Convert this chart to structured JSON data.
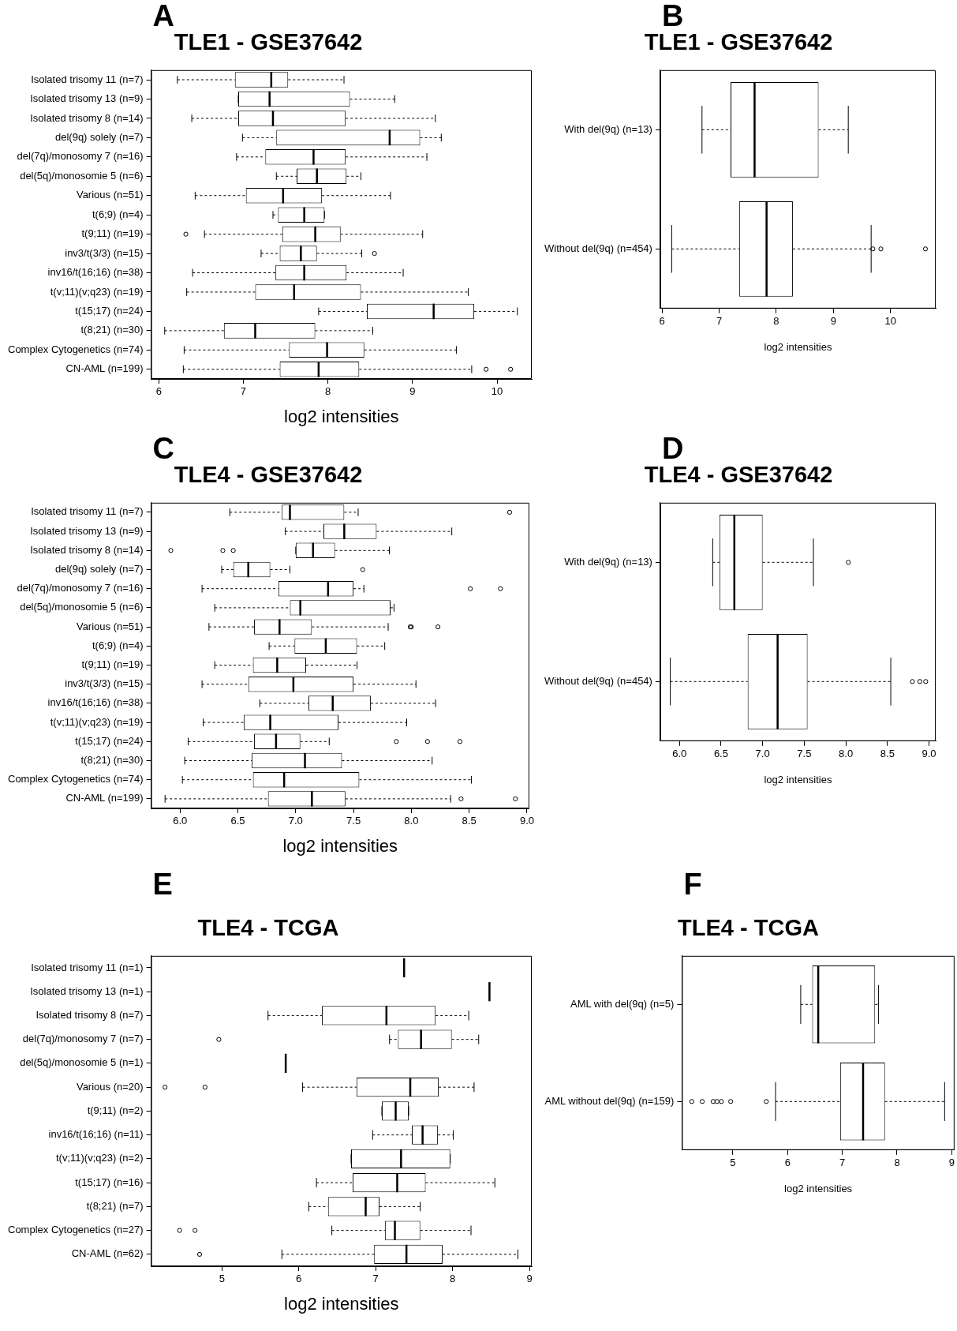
{
  "chart_data": [
    {
      "type": "box",
      "orientation": "horizontal",
      "title": "TLE1 - GSE37642",
      "xlabel": "log2 intensities",
      "annotations": [
        "A"
      ],
      "grid": false,
      "xlim": [
        5.91,
        10.41
      ],
      "xticks": [
        6,
        7,
        8,
        9,
        10
      ],
      "categories": [
        "Isolated trisomy 11 (n=7)",
        "Isolated trisomy 13 (n=9)",
        "Isolated trisomy 8 (n=14)",
        "del(9q) solely (n=7)",
        "del(7q)/monosomy 7 (n=16)",
        "del(5q)/monosomie 5 (n=6)",
        "Various (n=51)",
        "t(6;9) (n=4)",
        "t(9;11) (n=19)",
        "inv3/t(3/3) (n=15)",
        "inv16/t(16;16) (n=38)",
        "t(v;11)(v;q23) (n=19)",
        "t(15;17) (n=24)",
        "t(8;21) (n=30)",
        "Complex Cytogenetics (n=74)",
        "CN-AML (n=199)"
      ],
      "boxes": [
        {
          "low": 6.22,
          "q1": 6.9,
          "median": 7.33,
          "q3": 7.53,
          "high": 8.19
        },
        {
          "low": 6.94,
          "q1": 6.94,
          "median": 7.31,
          "q3": 8.26,
          "high": 8.79
        },
        {
          "low": 6.39,
          "q1": 6.94,
          "median": 7.35,
          "q3": 8.21,
          "high": 9.27
        },
        {
          "low": 6.99,
          "q1": 7.39,
          "median": 8.73,
          "q3": 9.09,
          "high": 9.34
        },
        {
          "low": 6.92,
          "q1": 7.26,
          "median": 7.83,
          "q3": 8.21,
          "high": 9.17
        },
        {
          "low": 7.39,
          "q1": 7.63,
          "median": 7.87,
          "q3": 8.22,
          "high": 8.39
        },
        {
          "low": 6.43,
          "q1": 7.03,
          "median": 7.47,
          "q3": 7.93,
          "high": 8.74
        },
        {
          "low": 7.35,
          "q1": 7.41,
          "median": 7.72,
          "q3": 7.96,
          "high": 7.96
        },
        {
          "low": 6.54,
          "q1": 7.46,
          "median": 7.85,
          "q3": 8.15,
          "high": 9.12,
          "outliers": [
            6.32
          ]
        },
        {
          "low": 7.21,
          "q1": 7.43,
          "median": 7.68,
          "q3": 7.87,
          "high": 8.4,
          "outliers": [
            8.55
          ]
        },
        {
          "low": 6.4,
          "q1": 7.38,
          "median": 7.72,
          "q3": 8.22,
          "high": 8.89
        },
        {
          "low": 6.33,
          "q1": 7.14,
          "median": 7.6,
          "q3": 8.39,
          "high": 9.66
        },
        {
          "low": 7.89,
          "q1": 8.46,
          "median": 9.25,
          "q3": 9.73,
          "high": 10.24
        },
        {
          "low": 6.07,
          "q1": 6.77,
          "median": 7.14,
          "q3": 7.85,
          "high": 8.53
        },
        {
          "low": 6.3,
          "q1": 7.54,
          "median": 7.99,
          "q3": 8.43,
          "high": 9.52
        },
        {
          "low": 6.29,
          "q1": 7.43,
          "median": 7.89,
          "q3": 8.37,
          "high": 9.7,
          "outliers": [
            9.87,
            10.16
          ]
        }
      ]
    },
    {
      "type": "box",
      "orientation": "horizontal",
      "title": "TLE1 - GSE37642",
      "xlabel": "log2 intensities",
      "annotations": [
        "B"
      ],
      "grid": false,
      "xlim": [
        5.97,
        10.79
      ],
      "xticks": [
        6,
        7,
        8,
        9,
        10
      ],
      "categories": [
        "With del(9q) (n=13)",
        "Without del(9q) (n=454)"
      ],
      "boxes": [
        {
          "low": 6.7,
          "q1": 7.2,
          "median": 7.62,
          "q3": 8.74,
          "high": 9.26
        },
        {
          "low": 6.17,
          "q1": 7.35,
          "median": 7.83,
          "q3": 8.29,
          "high": 9.66,
          "outliers": [
            9.69,
            9.83,
            10.61
          ]
        }
      ]
    },
    {
      "type": "box",
      "orientation": "horizontal",
      "title": "TLE4 - GSE37642",
      "xlabel": "log2 intensities",
      "annotations": [
        "C"
      ],
      "grid": false,
      "xlim": [
        5.75,
        9.02
      ],
      "xticks": [
        {
          "value": 6,
          "label": "6.0"
        },
        {
          "value": 6.5,
          "label": "6.5"
        },
        {
          "value": 7,
          "label": "7.0"
        },
        {
          "value": 7.5,
          "label": "7.5"
        },
        {
          "value": 8,
          "label": "8.0"
        },
        {
          "value": 8.5,
          "label": "8.5"
        },
        {
          "value": 9,
          "label": "9.0"
        }
      ],
      "categories": [
        "Isolated trisomy 11 (n=7)",
        "Isolated trisomy 13 (n=9)",
        "Isolated trisomy 8 (n=14)",
        "del(9q) solely (n=7)",
        "del(7q)/monosomy 7 (n=16)",
        "del(5q)/monosomie 5 (n=6)",
        "Various (n=51)",
        "t(6;9) (n=4)",
        "t(9;11) (n=19)",
        "inv3/t(3/3) (n=15)",
        "inv16/t(16;16) (n=38)",
        "t(v;11)(v;q23) (n=19)",
        "t(15;17) (n=24)",
        "t(8;21) (n=30)",
        "Complex Cytogenetics (n=74)",
        "CN-AML (n=199)"
      ],
      "boxes": [
        {
          "low": 6.43,
          "q1": 6.88,
          "median": 6.95,
          "q3": 7.42,
          "high": 7.54,
          "outliers": [
            8.85
          ]
        },
        {
          "low": 6.91,
          "q1": 7.24,
          "median": 7.42,
          "q3": 7.7,
          "high": 8.35
        },
        {
          "low": 7.0,
          "q1": 7.0,
          "median": 7.15,
          "q3": 7.34,
          "high": 7.81,
          "outliers": [
            5.92,
            6.37,
            6.46
          ]
        },
        {
          "low": 6.36,
          "q1": 6.46,
          "median": 6.59,
          "q3": 6.78,
          "high": 6.95,
          "outliers": [
            7.58
          ]
        },
        {
          "low": 6.19,
          "q1": 6.85,
          "median": 7.28,
          "q3": 7.5,
          "high": 7.59,
          "outliers": [
            8.51,
            8.77
          ]
        },
        {
          "low": 6.3,
          "q1": 6.95,
          "median": 7.04,
          "q3": 7.82,
          "high": 7.85
        },
        {
          "low": 6.25,
          "q1": 6.64,
          "median": 6.86,
          "q3": 7.14,
          "high": 7.8,
          "outliers": [
            7.99,
            8.0,
            8.23
          ]
        },
        {
          "low": 6.77,
          "q1": 6.99,
          "median": 7.26,
          "q3": 7.53,
          "high": 7.77
        },
        {
          "low": 6.3,
          "q1": 6.63,
          "median": 6.84,
          "q3": 7.09,
          "high": 7.53
        },
        {
          "low": 6.19,
          "q1": 6.59,
          "median": 6.98,
          "q3": 7.5,
          "high": 8.04
        },
        {
          "low": 6.69,
          "q1": 7.11,
          "median": 7.32,
          "q3": 7.65,
          "high": 8.21
        },
        {
          "low": 6.2,
          "q1": 6.55,
          "median": 6.78,
          "q3": 7.37,
          "high": 7.96
        },
        {
          "low": 6.07,
          "q1": 6.64,
          "median": 6.83,
          "q3": 7.04,
          "high": 7.29,
          "outliers": [
            7.87,
            8.14,
            8.42
          ]
        },
        {
          "low": 6.04,
          "q1": 6.62,
          "median": 7.08,
          "q3": 7.4,
          "high": 8.18
        },
        {
          "low": 6.02,
          "q1": 6.63,
          "median": 6.9,
          "q3": 7.55,
          "high": 8.52
        },
        {
          "low": 5.87,
          "q1": 6.76,
          "median": 7.14,
          "q3": 7.43,
          "high": 8.34,
          "outliers": [
            8.43,
            8.9
          ]
        }
      ]
    },
    {
      "type": "box",
      "orientation": "horizontal",
      "title": "TLE4 - GSE37642",
      "xlabel": "log2 intensities",
      "annotations": [
        "D"
      ],
      "grid": false,
      "xlim": [
        5.77,
        9.08
      ],
      "xticks": [
        {
          "value": 6,
          "label": "6.0"
        },
        {
          "value": 6.5,
          "label": "6.5"
        },
        {
          "value": 7,
          "label": "7.0"
        },
        {
          "value": 7.5,
          "label": "7.5"
        },
        {
          "value": 8,
          "label": "8.0"
        },
        {
          "value": 8.5,
          "label": "8.5"
        },
        {
          "value": 9,
          "label": "9.0"
        }
      ],
      "categories": [
        "With del(9q) (n=13)",
        "Without del(9q) (n=454)"
      ],
      "boxes": [
        {
          "low": 6.4,
          "q1": 6.48,
          "median": 6.66,
          "q3": 7.0,
          "high": 7.61,
          "outliers": [
            8.03
          ]
        },
        {
          "low": 5.89,
          "q1": 6.82,
          "median": 7.18,
          "q3": 7.54,
          "high": 8.54,
          "outliers": [
            8.8,
            8.89,
            8.96
          ]
        }
      ]
    },
    {
      "type": "box",
      "orientation": "horizontal",
      "title": "TLE4 - TCGA",
      "xlabel": "log2 intensities",
      "annotations": [
        "E"
      ],
      "grid": false,
      "xlim": [
        4.08,
        9.03
      ],
      "xticks": [
        5,
        6,
        7,
        8,
        9
      ],
      "categories": [
        "Isolated trisomy 11 (n=1)",
        "Isolated trisomy 13 (n=1)",
        "Isolated trisomy 8 (n=7)",
        "del(7q)/monosomy 7 (n=7)",
        "del(5q)/monosomie 5 (n=1)",
        "Various (n=20)",
        "t(9;11) (n=2)",
        "inv16/t(16;16) (n=11)",
        "t(v;11)(v;q23) (n=2)",
        "t(15;17) (n=16)",
        "t(8;21) (n=7)",
        "Complex Cytogenetics (n=27)",
        "CN-AML (n=62)"
      ],
      "boxes": [
        {
          "low": 7.37,
          "q1": 7.37,
          "median": 7.37,
          "q3": 7.37,
          "high": 7.37
        },
        {
          "low": 8.48,
          "q1": 8.48,
          "median": 8.48,
          "q3": 8.48,
          "high": 8.48
        },
        {
          "low": 5.6,
          "q1": 6.3,
          "median": 7.14,
          "q3": 7.78,
          "high": 8.21
        },
        {
          "low": 7.18,
          "q1": 7.29,
          "median": 7.59,
          "q3": 7.99,
          "high": 8.34,
          "outliers": [
            4.96
          ]
        },
        {
          "low": 5.83,
          "q1": 5.83,
          "median": 5.83,
          "q3": 5.83,
          "high": 5.83
        },
        {
          "low": 6.05,
          "q1": 6.75,
          "median": 7.45,
          "q3": 7.82,
          "high": 8.28,
          "outliers": [
            4.26,
            4.78
          ]
        },
        {
          "low": 7.08,
          "q1": 7.08,
          "median": 7.26,
          "q3": 7.43,
          "high": 7.43
        },
        {
          "low": 6.96,
          "q1": 7.47,
          "median": 7.61,
          "q3": 7.81,
          "high": 8.01
        },
        {
          "low": 6.68,
          "q1": 6.68,
          "median": 7.33,
          "q3": 7.97,
          "high": 7.97
        },
        {
          "low": 6.23,
          "q1": 6.7,
          "median": 7.28,
          "q3": 7.65,
          "high": 8.55
        },
        {
          "low": 6.13,
          "q1": 6.38,
          "median": 6.87,
          "q3": 7.05,
          "high": 7.58
        },
        {
          "low": 6.43,
          "q1": 7.12,
          "median": 7.25,
          "q3": 7.58,
          "high": 8.24,
          "outliers": [
            4.45,
            4.65
          ]
        },
        {
          "low": 5.78,
          "q1": 6.98,
          "median": 7.4,
          "q3": 7.87,
          "high": 8.85,
          "outliers": [
            4.71
          ]
        }
      ]
    },
    {
      "type": "box",
      "orientation": "horizontal",
      "title": "TLE4 - TCGA",
      "xlabel": "log2 intensities",
      "annotations": [
        "F"
      ],
      "grid": false,
      "xlim": [
        4.07,
        9.05
      ],
      "xticks": [
        5,
        6,
        7,
        8,
        9
      ],
      "categories": [
        "AML with del(9q) (n=5)",
        "AML without del(9q) (n=159)"
      ],
      "boxes": [
        {
          "low": 6.24,
          "q1": 6.45,
          "median": 6.56,
          "q3": 7.6,
          "high": 7.66
        },
        {
          "low": 5.78,
          "q1": 6.96,
          "median": 7.38,
          "q3": 7.78,
          "high": 8.87,
          "outliers": [
            4.25,
            4.44,
            4.64,
            4.71,
            4.79,
            4.96,
            5.61
          ]
        }
      ]
    }
  ]
}
